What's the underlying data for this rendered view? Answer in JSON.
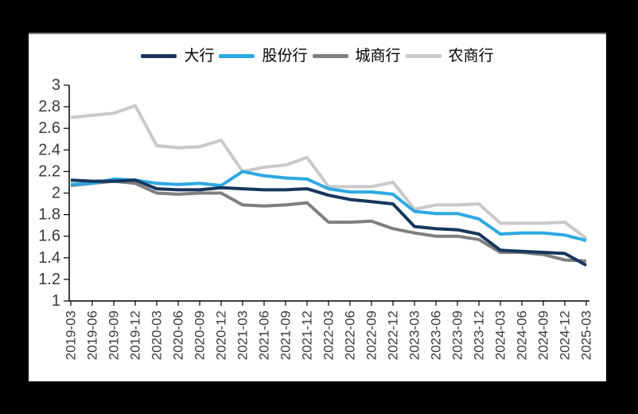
{
  "window": {
    "background_color": "#000000",
    "panel_background_color": "#ffffff",
    "panel_border_color": "#7b7b7b"
  },
  "axes": {
    "y_tick_labels": [
      "3",
      "2.8",
      "2.6",
      "2.4",
      "2.2",
      "2",
      "1.8",
      "1.6",
      "1.4",
      "1.2",
      "1"
    ],
    "y_min": 1,
    "y_max": 3,
    "text_color": "#3a3a3a"
  },
  "chart_data": {
    "type": "line",
    "title": "",
    "xlabel": "",
    "ylabel": "",
    "ylim": [
      1,
      3
    ],
    "y_tick_step": 0.2,
    "grid": false,
    "legend_position": "top",
    "categories": [
      "2019-03",
      "2019-06",
      "2019-09",
      "2019-12",
      "2020-03",
      "2020-06",
      "2020-09",
      "2020-12",
      "2021-03",
      "2021-06",
      "2021-09",
      "2021-12",
      "2022-03",
      "2022-06",
      "2022-09",
      "2022-12",
      "2023-03",
      "2023-06",
      "2023-09",
      "2023-12",
      "2024-03",
      "2024-06",
      "2024-09",
      "2024-12",
      "2025-03"
    ],
    "series": [
      {
        "name": "大行",
        "color": "#17365D",
        "values": [
          2.12,
          2.11,
          2.11,
          2.12,
          2.04,
          2.03,
          2.03,
          2.05,
          2.04,
          2.03,
          2.03,
          2.04,
          1.98,
          1.94,
          1.92,
          1.9,
          1.69,
          1.67,
          1.66,
          1.62,
          1.47,
          1.46,
          1.45,
          1.44,
          1.33
        ]
      },
      {
        "name": "股份行",
        "color": "#2DA9E1",
        "values": [
          2.08,
          2.09,
          2.13,
          2.12,
          2.09,
          2.08,
          2.09,
          2.07,
          2.2,
          2.16,
          2.14,
          2.13,
          2.04,
          2.01,
          2.01,
          1.99,
          1.83,
          1.81,
          1.81,
          1.76,
          1.62,
          1.63,
          1.63,
          1.61,
          1.56
        ]
      },
      {
        "name": "城商行",
        "color": "#7F7F7F",
        "values": [
          2.07,
          2.09,
          2.11,
          2.09,
          2.0,
          1.99,
          2.0,
          2.0,
          1.89,
          1.88,
          1.89,
          1.91,
          1.73,
          1.73,
          1.74,
          1.67,
          1.63,
          1.6,
          1.6,
          1.57,
          1.45,
          1.45,
          1.43,
          1.38,
          1.37
        ]
      },
      {
        "name": "农商行",
        "color": "#C9C9C9",
        "values": [
          2.7,
          2.72,
          2.74,
          2.81,
          2.44,
          2.42,
          2.43,
          2.49,
          2.2,
          2.24,
          2.26,
          2.33,
          2.06,
          2.06,
          2.06,
          2.1,
          1.85,
          1.89,
          1.89,
          1.9,
          1.72,
          1.72,
          1.72,
          1.73,
          1.58
        ]
      }
    ]
  }
}
